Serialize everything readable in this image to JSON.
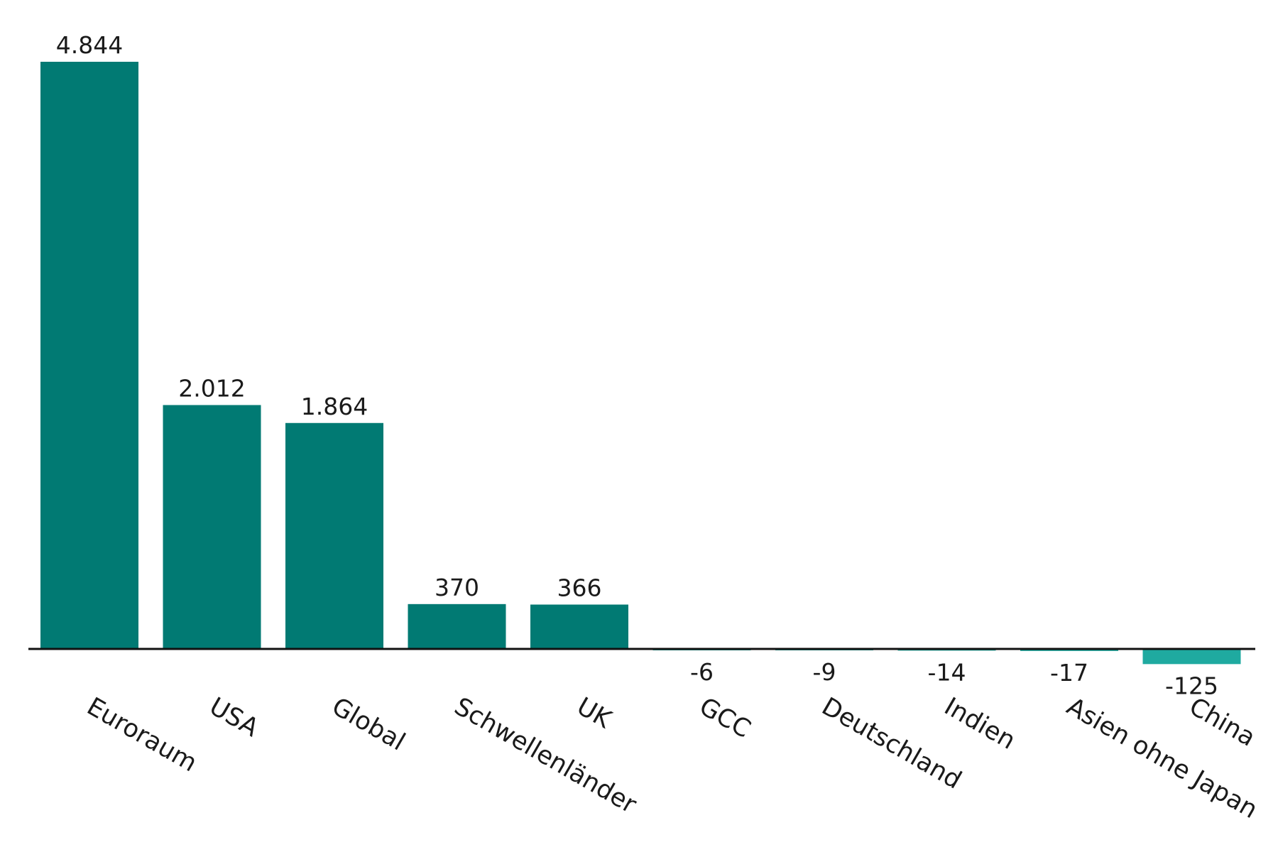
{
  "chart_data": {
    "type": "bar",
    "title": "",
    "xlabel": "",
    "ylabel": "",
    "categories": [
      "Euroraum",
      "USA",
      "Global",
      "Schwellenländer",
      "UK",
      "GCC",
      "Deutschland",
      "Indien",
      "Asien ohne Japan",
      "China"
    ],
    "values": [
      4844,
      2012,
      1864,
      370,
      366,
      -6,
      -9,
      -14,
      -17,
      -125
    ],
    "value_labels": [
      "4.844",
      "2.012",
      "1.864",
      "370",
      "366",
      "-6",
      "-9",
      "-14",
      "-17",
      "-125"
    ],
    "ylim": [
      -125,
      4844
    ],
    "grid": false,
    "legend": "none",
    "colors": {
      "positive": "#017a73",
      "negative": "#1faaa0",
      "axis": "#111111",
      "text": "#1a1a1a"
    }
  }
}
